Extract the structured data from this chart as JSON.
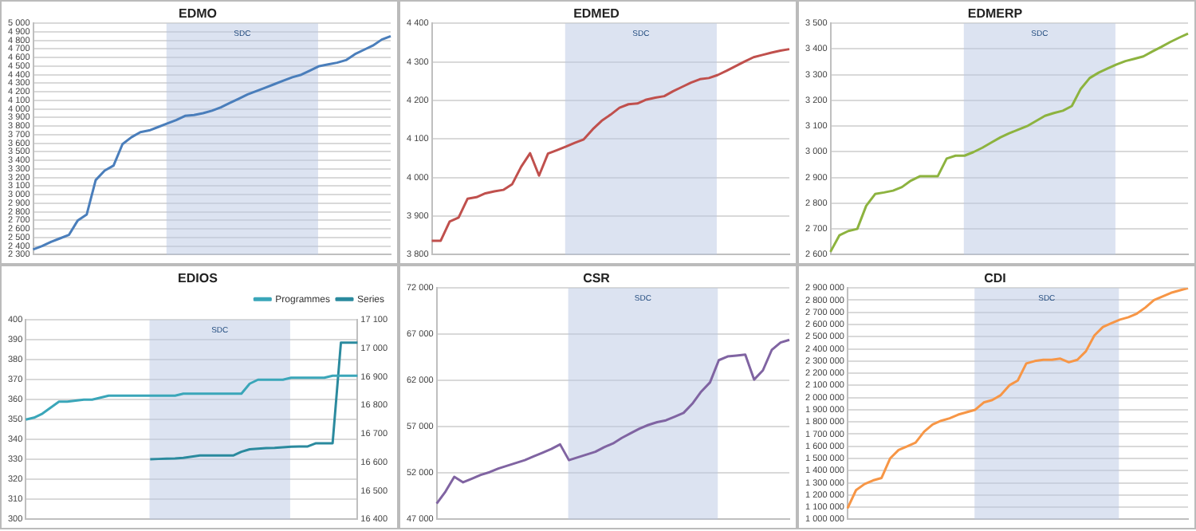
{
  "chart_data": [
    {
      "type": "line",
      "title": "EDMO",
      "annotations": [
        "SDC"
      ],
      "categories": [
        null,
        null,
        null,
        null,
        null,
        null,
        null,
        null,
        null,
        null,
        null,
        null,
        null,
        null,
        null,
        null,
        null,
        null,
        null,
        null,
        null,
        null,
        null,
        null,
        null,
        null,
        null,
        null,
        null,
        null,
        null,
        null,
        null,
        null,
        null,
        null,
        null,
        null,
        null,
        null,
        null
      ],
      "tick_labels": "y",
      "grid": "y",
      "legend": false,
      "ylim": [
        2300,
        5000
      ],
      "yticks": [
        {
          "value": 2300,
          "label": "2 300"
        },
        {
          "value": 2400,
          "label": "2 400"
        },
        {
          "value": 2500,
          "label": "2 500"
        },
        {
          "value": 2600,
          "label": "2 600"
        },
        {
          "value": 2700,
          "label": "2 700"
        },
        {
          "value": 2800,
          "label": "2 800"
        },
        {
          "value": 2900,
          "label": "2 900"
        },
        {
          "value": 3000,
          "label": "3 000"
        },
        {
          "value": 3100,
          "label": "3 100"
        },
        {
          "value": 3200,
          "label": "3 200"
        },
        {
          "value": 3300,
          "label": "3 300"
        },
        {
          "value": 3400,
          "label": "3 400"
        },
        {
          "value": 3500,
          "label": "3 500"
        },
        {
          "value": 3600,
          "label": "3 600"
        },
        {
          "value": 3700,
          "label": "3 700"
        },
        {
          "value": 3800,
          "label": "3 800"
        },
        {
          "value": 3900,
          "label": "3 900"
        },
        {
          "value": 4000,
          "label": "4 000"
        },
        {
          "value": 4100,
          "label": "4 100"
        },
        {
          "value": 4200,
          "label": "4 200"
        },
        {
          "value": 4300,
          "label": "4 300"
        },
        {
          "value": 4400,
          "label": "4 400"
        },
        {
          "value": 4500,
          "label": "4 500"
        },
        {
          "value": 4600,
          "label": "4 600"
        },
        {
          "value": 4700,
          "label": "4 700"
        },
        {
          "value": 4800,
          "label": "4 800"
        },
        {
          "value": 4900,
          "label": "4 900"
        },
        {
          "value": 5000,
          "label": "5 000"
        }
      ],
      "series": [
        {
          "color": "#4a7ebb",
          "values": [
            2360,
            2400,
            2450,
            2490,
            2530,
            2700,
            2770,
            3170,
            3280,
            3340,
            3590,
            3670,
            3730,
            3750,
            3790,
            3830,
            3870,
            3920,
            3930,
            3950,
            3980,
            4020,
            4070,
            4120,
            4170,
            4210,
            4250,
            4290,
            4330,
            4370,
            4400,
            4450,
            4500,
            4520,
            4540,
            4570,
            4640,
            4690,
            4740,
            4810,
            4850
          ]
        }
      ]
    },
    {
      "type": "line",
      "title": "EDMED",
      "annotations": [
        "SDC"
      ],
      "categories": [
        null,
        null,
        null,
        null,
        null,
        null,
        null,
        null,
        null,
        null,
        null,
        null,
        null,
        null,
        null,
        null,
        null,
        null,
        null,
        null,
        null,
        null,
        null,
        null,
        null,
        null,
        null,
        null,
        null,
        null,
        null,
        null,
        null,
        null,
        null,
        null,
        null,
        null,
        null,
        null,
        null
      ],
      "tick_labels": "y",
      "grid": "y",
      "legend": false,
      "ylim": [
        3800,
        4400
      ],
      "yticks": [
        {
          "value": 3800,
          "label": "3 800"
        },
        {
          "value": 3900,
          "label": "3 900"
        },
        {
          "value": 4000,
          "label": "4 000"
        },
        {
          "value": 4100,
          "label": "4 100"
        },
        {
          "value": 4200,
          "label": "4 200"
        },
        {
          "value": 4300,
          "label": "4 300"
        },
        {
          "value": 4400,
          "label": "4 400"
        }
      ],
      "series": [
        {
          "color": "#c0504d",
          "values": [
            3836,
            3836,
            3886,
            3896,
            3945,
            3949,
            3959,
            3964,
            3968,
            3983,
            4028,
            4063,
            4005,
            4062,
            4071,
            4080,
            4090,
            4099,
            4125,
            4147,
            4163,
            4181,
            4190,
            4192,
            4202,
            4207,
            4211,
            4224,
            4235,
            4246,
            4255,
            4258,
            4266,
            4277,
            4289,
            4301,
            4312,
            4318,
            4324,
            4329,
            4333
          ]
        }
      ]
    },
    {
      "type": "line",
      "title": "EDMERP",
      "annotations": [
        "SDC"
      ],
      "categories": [
        null,
        null,
        null,
        null,
        null,
        null,
        null,
        null,
        null,
        null,
        null,
        null,
        null,
        null,
        null,
        null,
        null,
        null,
        null,
        null,
        null,
        null,
        null,
        null,
        null,
        null,
        null,
        null,
        null,
        null,
        null,
        null,
        null,
        null,
        null,
        null,
        null,
        null,
        null,
        null,
        null
      ],
      "tick_labels": "y",
      "grid": "y",
      "legend": false,
      "ylim": [
        2600,
        3500
      ],
      "yticks": [
        {
          "value": 2600,
          "label": "2 600"
        },
        {
          "value": 2700,
          "label": "2 700"
        },
        {
          "value": 2800,
          "label": "2 800"
        },
        {
          "value": 2900,
          "label": "2 900"
        },
        {
          "value": 3000,
          "label": "3 000"
        },
        {
          "value": 3100,
          "label": "3 100"
        },
        {
          "value": 3200,
          "label": "3 200"
        },
        {
          "value": 3300,
          "label": "3 300"
        },
        {
          "value": 3400,
          "label": "3 400"
        },
        {
          "value": 3500,
          "label": "3 500"
        }
      ],
      "series": [
        {
          "color": "#8db33f",
          "values": [
            2611,
            2675,
            2692,
            2700,
            2790,
            2836,
            2842,
            2849,
            2863,
            2888,
            2905,
            2905,
            2905,
            2974,
            2985,
            2985,
            2999,
            3016,
            3036,
            3056,
            3072,
            3086,
            3100,
            3120,
            3140,
            3151,
            3160,
            3178,
            3245,
            3287,
            3308,
            3324,
            3340,
            3353,
            3362,
            3371,
            3390,
            3408,
            3427,
            3444,
            3460
          ]
        }
      ]
    },
    {
      "type": "line",
      "title": "EDIOS",
      "annotations": [
        "SDC"
      ],
      "categories": [
        null,
        null,
        null,
        null,
        null,
        null,
        null,
        null,
        null,
        null,
        null,
        null,
        null,
        null,
        null,
        null,
        null,
        null,
        null,
        null,
        null,
        null,
        null,
        null,
        null,
        null,
        null,
        null,
        null,
        null,
        null,
        null,
        null,
        null,
        null,
        null,
        null,
        null,
        null,
        null,
        null
      ],
      "tick_labels": "y",
      "grid": "y",
      "legend": "top right",
      "ylim": [
        300,
        400
      ],
      "yticks": [
        300,
        310,
        320,
        330,
        340,
        350,
        360,
        370,
        380,
        390,
        400
      ],
      "y2lim": [
        16400,
        17100
      ],
      "y2ticks": [
        {
          "value": 16400,
          "label": "16 400"
        },
        {
          "value": 16500,
          "label": "16 500"
        },
        {
          "value": 16600,
          "label": "16 600"
        },
        {
          "value": 16700,
          "label": "16 700"
        },
        {
          "value": 16800,
          "label": "16 800"
        },
        {
          "value": 16900,
          "label": "16 900"
        },
        {
          "value": 17000,
          "label": "17 000"
        },
        {
          "value": 17100,
          "label": "17 100"
        }
      ],
      "series": [
        {
          "name": "Programmes",
          "color": "#3aa6b9",
          "values": [
            350,
            351,
            353,
            356,
            359,
            359,
            359.5,
            360,
            360,
            361,
            362,
            362,
            362,
            362,
            362,
            362,
            362,
            362,
            362,
            363,
            363,
            363,
            363,
            363,
            363,
            363,
            363,
            368,
            370,
            370,
            370,
            370,
            371,
            371,
            371,
            371,
            371,
            372,
            372,
            372,
            372
          ]
        },
        {
          "name": "Series",
          "color": "#2b8a9e",
          "axis": "y2",
          "values": [
            null,
            null,
            null,
            null,
            null,
            null,
            null,
            null,
            null,
            null,
            null,
            null,
            null,
            null,
            null,
            16611,
            16612,
            16613,
            16614,
            16616,
            16620,
            16624,
            16624,
            16624,
            16624,
            16624,
            16637,
            16646,
            16648,
            16650,
            16651,
            16653,
            16655,
            16656,
            16656,
            16667,
            16667,
            16667,
            17020,
            17020,
            17020
          ]
        }
      ]
    },
    {
      "type": "line",
      "title": "CSR",
      "annotations": [
        "SDC"
      ],
      "categories": [
        null,
        null,
        null,
        null,
        null,
        null,
        null,
        null,
        null,
        null,
        null,
        null,
        null,
        null,
        null,
        null,
        null,
        null,
        null,
        null,
        null,
        null,
        null,
        null,
        null,
        null,
        null,
        null,
        null,
        null,
        null,
        null,
        null,
        null,
        null,
        null,
        null,
        null,
        null,
        null,
        null
      ],
      "tick_labels": "y",
      "grid": "y",
      "legend": false,
      "ylim": [
        47000,
        72000
      ],
      "yticks": [
        {
          "value": 47000,
          "label": "47 000"
        },
        {
          "value": 52000,
          "label": "52 000"
        },
        {
          "value": 57000,
          "label": "57 000"
        },
        {
          "value": 62000,
          "label": "62 000"
        },
        {
          "value": 67000,
          "label": "67 000"
        },
        {
          "value": 72000,
          "label": "72 000"
        }
      ],
      "series": [
        {
          "color": "#8064a2",
          "values": [
            48700,
            50000,
            51600,
            51000,
            51400,
            51800,
            52100,
            52500,
            52800,
            53100,
            53400,
            53800,
            54200,
            54600,
            55100,
            53400,
            53700,
            54000,
            54300,
            54800,
            55200,
            55800,
            56300,
            56800,
            57200,
            57500,
            57700,
            58100,
            58500,
            59500,
            60800,
            61800,
            64200,
            64600,
            64700,
            64800,
            62100,
            63100,
            65300,
            66100,
            66400
          ]
        }
      ]
    },
    {
      "type": "line",
      "title": "CDI",
      "annotations": [
        "SDC"
      ],
      "categories": [
        null,
        null,
        null,
        null,
        null,
        null,
        null,
        null,
        null,
        null,
        null,
        null,
        null,
        null,
        null,
        null,
        null,
        null,
        null,
        null,
        null,
        null,
        null,
        null,
        null,
        null,
        null,
        null,
        null,
        null,
        null,
        null,
        null,
        null,
        null,
        null,
        null,
        null,
        null,
        null,
        null
      ],
      "tick_labels": "y",
      "grid": "y",
      "legend": false,
      "ylim": [
        1000000,
        2900000
      ],
      "yticks": [
        {
          "value": 1000000,
          "label": "1 000 000"
        },
        {
          "value": 1100000,
          "label": "1 100 000"
        },
        {
          "value": 1200000,
          "label": "1 200 000"
        },
        {
          "value": 1300000,
          "label": "1 300 000"
        },
        {
          "value": 1400000,
          "label": "1 400 000"
        },
        {
          "value": 1500000,
          "label": "1 500 000"
        },
        {
          "value": 1600000,
          "label": "1 600 000"
        },
        {
          "value": 1700000,
          "label": "1 700 000"
        },
        {
          "value": 1800000,
          "label": "1 800 000"
        },
        {
          "value": 1900000,
          "label": "1 900 000"
        },
        {
          "value": 2000000,
          "label": "2 000 000"
        },
        {
          "value": 2100000,
          "label": "2 100 000"
        },
        {
          "value": 2200000,
          "label": "2 200 000"
        },
        {
          "value": 2300000,
          "label": "2 300 000"
        },
        {
          "value": 2400000,
          "label": "2 400 000"
        },
        {
          "value": 2500000,
          "label": "2 500 000"
        },
        {
          "value": 2600000,
          "label": "2 600 000"
        },
        {
          "value": 2700000,
          "label": "2 700 000"
        },
        {
          "value": 2800000,
          "label": "2 800 000"
        },
        {
          "value": 2900000,
          "label": "2 900 000"
        }
      ],
      "series": [
        {
          "color": "#f79646",
          "values": [
            1090000,
            1240000,
            1290000,
            1320000,
            1340000,
            1500000,
            1570000,
            1600000,
            1630000,
            1720000,
            1780000,
            1810000,
            1830000,
            1860000,
            1880000,
            1900000,
            1960000,
            1980000,
            2020000,
            2100000,
            2140000,
            2280000,
            2300000,
            2310000,
            2310000,
            2320000,
            2290000,
            2310000,
            2380000,
            2510000,
            2580000,
            2610000,
            2640000,
            2660000,
            2690000,
            2740000,
            2800000,
            2830000,
            2860000,
            2880000,
            2900000
          ]
        }
      ]
    }
  ]
}
